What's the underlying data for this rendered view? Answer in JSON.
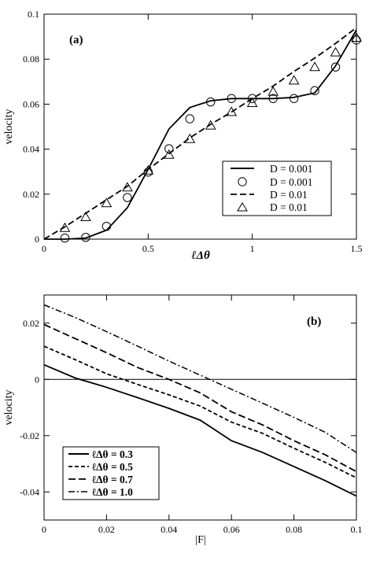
{
  "chart_data": [
    {
      "panel_label": "(a)",
      "type": "line",
      "xlabel": "ℓΔθ",
      "ylabel": "velocity",
      "xlim": [
        0,
        1.5
      ],
      "ylim": [
        0,
        0.1
      ],
      "xticks": [
        0,
        0.5,
        1,
        1.5
      ],
      "xtick_labels": [
        "0",
        "0.5",
        "1",
        "1.5"
      ],
      "yticks": [
        0,
        0.02,
        0.04,
        0.06,
        0.08,
        0.1
      ],
      "ytick_labels": [
        "0",
        "0.02",
        "0.04",
        "0.06",
        "0.08",
        "0.1"
      ],
      "legend_position": "bottom-right",
      "series": [
        {
          "name": "D = 0.001",
          "style": "solid-line",
          "x": [
            0,
            0.1,
            0.2,
            0.3,
            0.4,
            0.5,
            0.6,
            0.7,
            0.8,
            0.9,
            1.0,
            1.1,
            1.2,
            1.3,
            1.4,
            1.5
          ],
          "y": [
            0,
            0,
            0.0005,
            0.004,
            0.014,
            0.031,
            0.049,
            0.0585,
            0.0615,
            0.0625,
            0.0625,
            0.0625,
            0.063,
            0.065,
            0.077,
            0.093
          ]
        },
        {
          "name": "D = 0.001",
          "style": "circle-markers",
          "x": [
            0.1,
            0.2,
            0.3,
            0.4,
            0.5,
            0.6,
            0.7,
            0.8,
            0.9,
            1.0,
            1.1,
            1.2,
            1.3,
            1.4,
            1.5
          ],
          "y": [
            0.0005,
            0.0008,
            0.0057,
            0.0185,
            0.0298,
            0.0402,
            0.0535,
            0.061,
            0.0625,
            0.0625,
            0.0625,
            0.0625,
            0.066,
            0.0765,
            0.0885
          ]
        },
        {
          "name": "D = 0.01",
          "style": "dashed-line",
          "x": [
            0,
            0.1,
            0.2,
            0.3,
            0.4,
            0.5,
            0.6,
            0.7,
            0.8,
            0.9,
            1.0,
            1.1,
            1.2,
            1.3,
            1.4,
            1.5
          ],
          "y": [
            0,
            0.0055,
            0.0115,
            0.0175,
            0.0235,
            0.031,
            0.038,
            0.045,
            0.051,
            0.0565,
            0.0625,
            0.068,
            0.0745,
            0.0805,
            0.087,
            0.094
          ]
        },
        {
          "name": "D = 0.01",
          "style": "triangle-markers",
          "x": [
            0.1,
            0.2,
            0.3,
            0.4,
            0.5,
            0.6,
            0.7,
            0.8,
            0.9,
            1.0,
            1.1,
            1.2,
            1.3,
            1.4,
            1.5
          ],
          "y": [
            0.005,
            0.0098,
            0.016,
            0.023,
            0.0305,
            0.0375,
            0.0445,
            0.0505,
            0.0565,
            0.0605,
            0.0655,
            0.0705,
            0.0765,
            0.083,
            0.0895
          ]
        }
      ]
    },
    {
      "panel_label": "(b)",
      "type": "line",
      "xlabel": "|F|",
      "ylabel": "velocity",
      "xlim": [
        0,
        0.1
      ],
      "ylim": [
        -0.05,
        0.03
      ],
      "xticks": [
        0,
        0.02,
        0.04,
        0.06,
        0.08,
        0.1
      ],
      "xtick_labels": [
        "0",
        "0.02",
        "0.04",
        "0.06",
        "0.08",
        "0.1"
      ],
      "yticks": [
        -0.04,
        -0.02,
        0,
        0.02
      ],
      "ytick_labels": [
        "-0.04",
        "-0.02",
        "0",
        "0.02"
      ],
      "zero_line": true,
      "legend_position": "bottom-left",
      "series": [
        {
          "name": "ℓΔθ = 0.3",
          "style": "solid",
          "x": [
            0,
            0.01,
            0.02,
            0.03,
            0.04,
            0.05,
            0.06,
            0.07,
            0.08,
            0.09,
            0.1
          ],
          "y": [
            0.0052,
            0.0005,
            -0.0028,
            -0.0065,
            -0.0103,
            -0.0145,
            -0.0218,
            -0.026,
            -0.031,
            -0.036,
            -0.0415
          ]
        },
        {
          "name": "ℓΔθ = 0.5",
          "style": "short-dash",
          "x": [
            0,
            0.01,
            0.02,
            0.03,
            0.04,
            0.05,
            0.06,
            0.07,
            0.08,
            0.09,
            0.1
          ],
          "y": [
            0.0118,
            0.007,
            0.002,
            -0.0018,
            -0.0055,
            -0.0095,
            -0.0152,
            -0.0192,
            -0.0245,
            -0.0295,
            -0.035
          ]
        },
        {
          "name": "ℓΔθ = 0.7",
          "style": "long-dash",
          "x": [
            0,
            0.01,
            0.02,
            0.03,
            0.04,
            0.05,
            0.06,
            0.07,
            0.08,
            0.09,
            0.1
          ],
          "y": [
            0.0195,
            0.0145,
            0.0095,
            0.0042,
            0,
            -0.0048,
            -0.0115,
            -0.0162,
            -0.0218,
            -0.0268,
            -0.0328
          ]
        },
        {
          "name": "ℓΔθ = 1.0",
          "style": "dash-dot",
          "x": [
            0,
            0.01,
            0.02,
            0.03,
            0.04,
            0.05,
            0.06,
            0.07,
            0.08,
            0.09,
            0.1
          ],
          "y": [
            0.0265,
            0.022,
            0.017,
            0.0118,
            0.0065,
            0.0015,
            -0.0035,
            -0.0085,
            -0.0135,
            -0.0188,
            -0.026
          ]
        }
      ]
    }
  ]
}
